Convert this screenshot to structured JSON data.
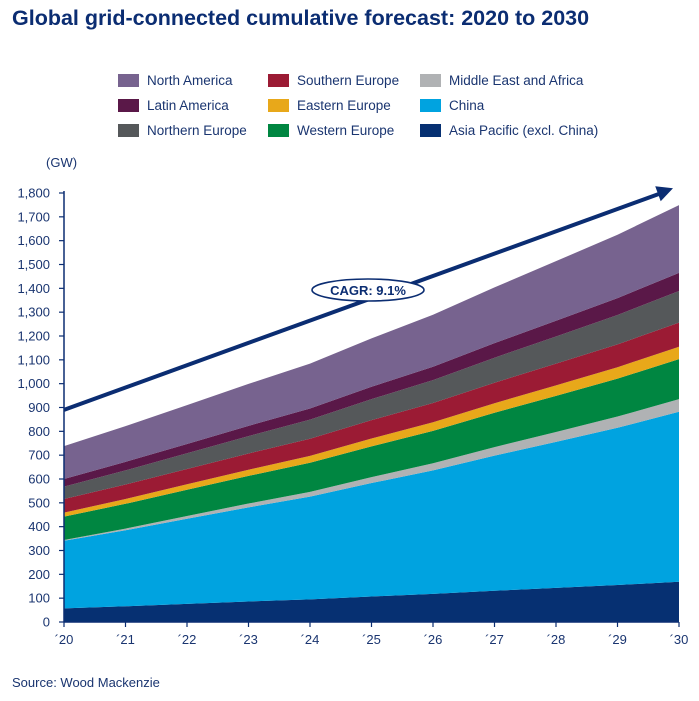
{
  "title": "Global grid-connected cumulative forecast: 2020 to 2030",
  "source": "Source: Wood Mackenzie",
  "chart_data": {
    "type": "area",
    "stacked": true,
    "title": "Global grid-connected cumulative forecast: 2020 to 2030",
    "ylabel": "(GW)",
    "ylim": [
      0,
      1800
    ],
    "yticks": [
      0,
      100,
      200,
      300,
      400,
      500,
      600,
      700,
      800,
      900,
      1000,
      1100,
      1200,
      1300,
      1400,
      1500,
      1600,
      1700,
      1800
    ],
    "categories": [
      "´20",
      "´21",
      "´22",
      "´23",
      "´24",
      "´25",
      "´26",
      "´27",
      "´28",
      "´29",
      "´30"
    ],
    "legend_position": "top",
    "grid": false,
    "annotation": {
      "label": "CAGR: 9.1%",
      "arrow_from": [
        0,
        890
      ],
      "arrow_to": [
        10,
        1820
      ]
    },
    "series": [
      {
        "name": "Asia Pacific (excl. China)",
        "color": "#063072",
        "values": [
          57,
          66,
          76,
          86,
          95,
          107,
          118,
          131,
          143,
          155,
          169
        ]
      },
      {
        "name": "China",
        "color": "#00a3e0",
        "values": [
          284,
          319,
          357,
          395,
          431,
          476,
          518,
          567,
          613,
          660,
          713
        ]
      },
      {
        "name": "Middle East and Africa",
        "color": "#b0b2b4",
        "values": [
          3,
          7,
          12,
          16,
          20,
          25,
          30,
          36,
          41,
          47,
          53
        ]
      },
      {
        "name": "Western Europe",
        "color": "#008641",
        "values": [
          98,
          104,
          110,
          116,
          122,
          129,
          136,
          144,
          152,
          159,
          168
        ]
      },
      {
        "name": "Eastern Europe",
        "color": "#e8a81a",
        "values": [
          17,
          20,
          23,
          26,
          29,
          33,
          36,
          40,
          44,
          48,
          52
        ]
      },
      {
        "name": "Southern Europe",
        "color": "#9b1b34",
        "values": [
          57,
          61,
          64,
          68,
          72,
          77,
          81,
          86,
          91,
          96,
          101
        ]
      },
      {
        "name": "Northern Europe",
        "color": "#55585a",
        "values": [
          52,
          59,
          66,
          73,
          80,
          88,
          96,
          105,
          114,
          123,
          133
        ]
      },
      {
        "name": "Latin America",
        "color": "#5a1848",
        "values": [
          32,
          36,
          39,
          43,
          47,
          52,
          56,
          61,
          66,
          71,
          76
        ]
      },
      {
        "name": "North America",
        "color": "#77638f",
        "values": [
          138,
          150,
          163,
          176,
          188,
          203,
          218,
          234,
          250,
          266,
          284
        ]
      }
    ],
    "legend_order": [
      "North America",
      "Southern Europe",
      "Middle East and Africa",
      "Latin America",
      "Eastern Europe",
      "China",
      "Northern Europe",
      "Western Europe",
      "Asia Pacific (excl. China)"
    ]
  }
}
